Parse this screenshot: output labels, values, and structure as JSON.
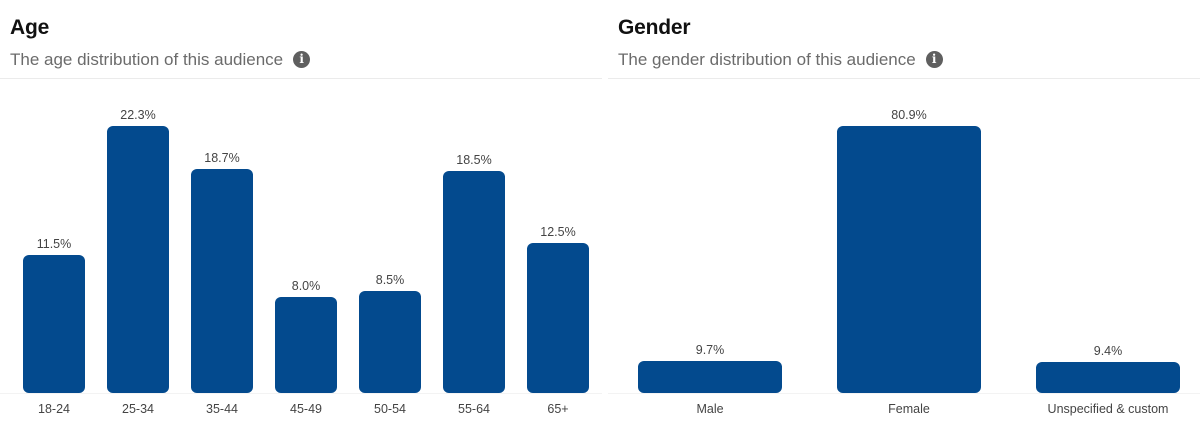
{
  "age": {
    "title": "Age",
    "subtitle": "The age distribution of this audience",
    "info_icon": "info-icon",
    "bars": [
      {
        "label": "18-24",
        "value": 11.5,
        "display": "11.5%"
      },
      {
        "label": "25-34",
        "value": 22.3,
        "display": "22.3%"
      },
      {
        "label": "35-44",
        "value": 18.7,
        "display": "18.7%"
      },
      {
        "label": "45-49",
        "value": 8.0,
        "display": "8.0%"
      },
      {
        "label": "50-54",
        "value": 8.5,
        "display": "8.5%"
      },
      {
        "label": "55-64",
        "value": 18.5,
        "display": "18.5%"
      },
      {
        "label": "65+",
        "value": 12.5,
        "display": "12.5%"
      }
    ]
  },
  "gender": {
    "title": "Gender",
    "subtitle": "The gender distribution of this audience",
    "info_icon": "info-icon",
    "bars": [
      {
        "label": "Male",
        "value": 9.7,
        "display": "9.7%"
      },
      {
        "label": "Female",
        "value": 80.9,
        "display": "80.9%"
      },
      {
        "label": "Unspecified & custom",
        "value": 9.4,
        "display": "9.4%"
      }
    ]
  },
  "colors": {
    "bar": "#034a8e",
    "title": "#111111",
    "subtitle": "#6b6b6b",
    "value_label": "#444444"
  },
  "chart_data": [
    {
      "type": "bar",
      "title": "Age",
      "subtitle": "The age distribution of this audience",
      "categories": [
        "18-24",
        "25-34",
        "35-44",
        "45-49",
        "50-54",
        "55-64",
        "65+"
      ],
      "values": [
        11.5,
        22.3,
        18.7,
        8.0,
        8.5,
        18.5,
        12.5
      ],
      "unit": "%",
      "xlabel": "",
      "ylabel": "",
      "grid": false,
      "legend": null,
      "data_labels": true
    },
    {
      "type": "bar",
      "title": "Gender",
      "subtitle": "The gender distribution of this audience",
      "categories": [
        "Male",
        "Female",
        "Unspecified & custom"
      ],
      "values": [
        9.7,
        80.9,
        9.4
      ],
      "unit": "%",
      "xlabel": "",
      "ylabel": "",
      "grid": false,
      "legend": null,
      "data_labels": true
    }
  ]
}
